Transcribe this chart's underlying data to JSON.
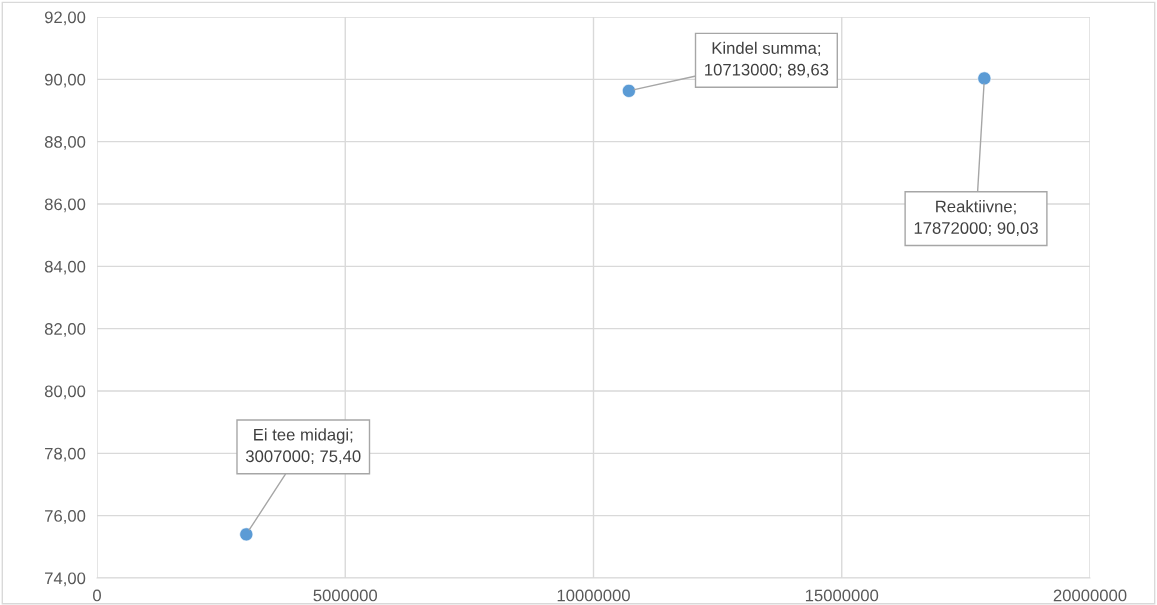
{
  "chart_data": {
    "type": "scatter",
    "x": [
      3007000,
      10713000,
      17872000
    ],
    "values": [
      75.4,
      89.63,
      90.03
    ],
    "color": "#5b9bd5",
    "marker": "circle",
    "xlim": [
      0,
      20000000
    ],
    "xticks": [
      0,
      5000000,
      10000000,
      15000000,
      20000000
    ],
    "ylim": [
      74,
      92
    ],
    "yticks": [
      {
        "value": 74,
        "label": "74,00"
      },
      {
        "value": 76,
        "label": "76,00"
      },
      {
        "value": 78,
        "label": "78,00"
      },
      {
        "value": 80,
        "label": "80,00"
      },
      {
        "value": 82,
        "label": "82,00"
      },
      {
        "value": 84,
        "label": "84,00"
      },
      {
        "value": 86,
        "label": "86,00"
      },
      {
        "value": 88,
        "label": "88,00"
      },
      {
        "value": 90,
        "label": "90,00"
      },
      {
        "value": 92,
        "label": "92,00"
      }
    ],
    "grid": true,
    "annotations": [
      {
        "text": "Ei tee midagi;\n3007000; 75,40",
        "x": 3007000,
        "y": 75.4
      },
      {
        "text": "Kindel summa;\n10713000; 89,63",
        "x": 10713000,
        "y": 89.63
      },
      {
        "text": "Reaktiivne;\n17872000; 90,03",
        "x": 17872000,
        "y": 90.03
      }
    ]
  }
}
